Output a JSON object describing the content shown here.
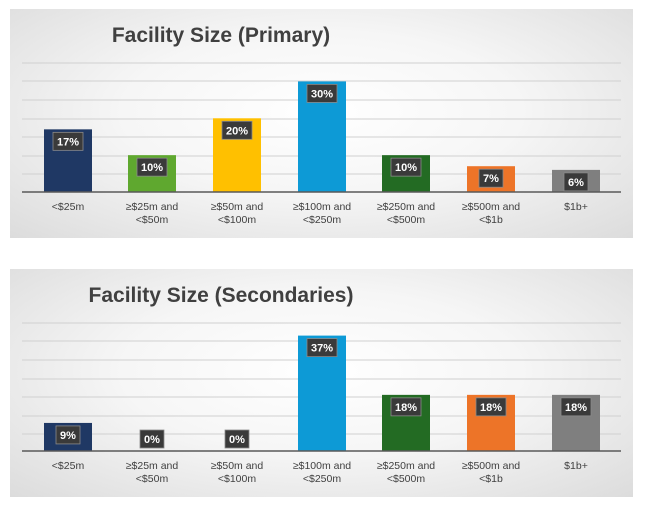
{
  "chart_data": [
    {
      "type": "bar",
      "title": "Facility Size (Primary)",
      "categories": [
        [
          "<$25m"
        ],
        [
          "≥$25m and",
          "<$50m"
        ],
        [
          "≥$50m and",
          "<$100m"
        ],
        [
          "≥$100m and",
          "<$250m"
        ],
        [
          "≥$250m and",
          "<$500m"
        ],
        [
          "≥$500m and",
          "<$1b"
        ],
        [
          "$1b+"
        ]
      ],
      "values": [
        17,
        10,
        20,
        30,
        10,
        7,
        6
      ],
      "data_labels": [
        "17%",
        "10%",
        "20%",
        "30%",
        "10%",
        "7%",
        "6%"
      ],
      "colors": [
        "#1f3864",
        "#5fa82f",
        "#ffc000",
        "#0d9ad6",
        "#236b23",
        "#ed7428",
        "#7f7f7f"
      ],
      "xlabel": "",
      "ylabel": "",
      "ylim": [
        0,
        35
      ],
      "grid": true,
      "legend": "none"
    },
    {
      "type": "bar",
      "title": "Facility Size (Secondaries)",
      "categories": [
        [
          "<$25m"
        ],
        [
          "≥$25m and",
          "<$50m"
        ],
        [
          "≥$50m and",
          "<$100m"
        ],
        [
          "≥$100m and",
          "<$250m"
        ],
        [
          "≥$250m and",
          "<$500m"
        ],
        [
          "≥$500m and",
          "<$1b"
        ],
        [
          "$1b+"
        ]
      ],
      "values": [
        9,
        0,
        0,
        37,
        18,
        18,
        18
      ],
      "data_labels": [
        "9%",
        "0%",
        "0%",
        "37%",
        "18%",
        "18%",
        "18%"
      ],
      "colors": [
        "#1f3864",
        "#5fa82f",
        "#ffc000",
        "#0d9ad6",
        "#236b23",
        "#ed7428",
        "#7f7f7f"
      ],
      "xlabel": "",
      "ylabel": "",
      "ylim": [
        0,
        42
      ],
      "grid": true,
      "legend": "none"
    }
  ]
}
